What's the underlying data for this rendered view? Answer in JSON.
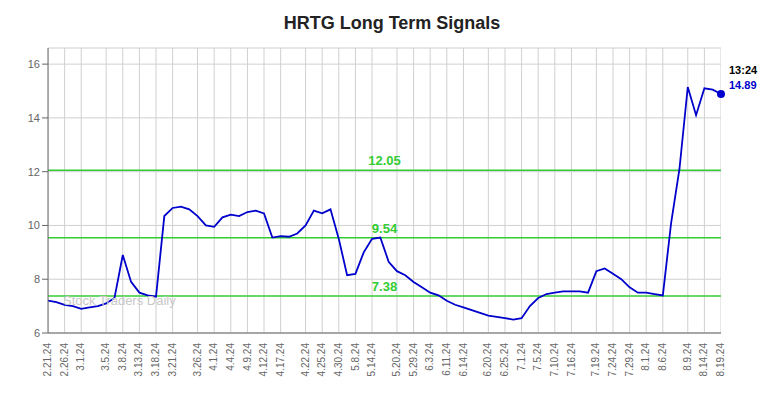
{
  "chart_data": {
    "type": "line",
    "title": "HRTG Long Term Signals",
    "categories": [
      "2.21.24",
      null,
      "2.26.24",
      null,
      "3.1.24",
      null,
      null,
      "3.5.24",
      null,
      "3.8.24",
      null,
      "3.13.24",
      null,
      "3.18.24",
      null,
      "3.21.24",
      null,
      null,
      "3.26.24",
      null,
      "4.1.24",
      null,
      "4.4.24",
      null,
      "4.9.24",
      null,
      "4.12.24",
      null,
      "4.17.24",
      null,
      null,
      "4.22.24",
      null,
      "4.25.24",
      null,
      "4.30.24",
      null,
      "5.8.24",
      null,
      "5.14.24",
      null,
      null,
      "5.20.24",
      null,
      "5.29.24",
      null,
      "6.3.24",
      null,
      "6.11.24",
      null,
      "6.14.24",
      null,
      null,
      "6.20.24",
      null,
      "6.25.24",
      null,
      "7.1.24",
      null,
      "7.5.24",
      null,
      "7.10.24",
      null,
      "7.16.24",
      null,
      null,
      "7.19.24",
      null,
      "7.24.24",
      null,
      "7.29.24",
      null,
      "8.1.24",
      null,
      "8.6.24",
      null,
      null,
      "8.9.24",
      null,
      "8.14.24",
      null,
      "8.19.24"
    ],
    "values": [
      7.2,
      7.15,
      7.05,
      7.0,
      6.9,
      6.95,
      7.0,
      7.1,
      7.3,
      8.9,
      7.9,
      7.5,
      7.4,
      7.35,
      10.35,
      10.65,
      10.7,
      10.6,
      10.35,
      10.0,
      9.95,
      10.3,
      10.4,
      10.35,
      10.5,
      10.55,
      10.45,
      9.55,
      9.6,
      9.58,
      9.7,
      10.0,
      10.55,
      10.45,
      10.6,
      9.5,
      8.15,
      8.2,
      9.0,
      9.5,
      9.55,
      8.65,
      8.3,
      8.15,
      7.9,
      7.7,
      7.5,
      7.4,
      7.2,
      7.05,
      6.95,
      6.85,
      6.75,
      6.65,
      6.6,
      6.55,
      6.5,
      6.55,
      7.0,
      7.3,
      7.45,
      7.5,
      7.55,
      7.55,
      7.55,
      7.5,
      8.3,
      8.4,
      8.2,
      8.0,
      7.7,
      7.5,
      7.5,
      7.45,
      7.4,
      10.1,
      12.1,
      15.15,
      14.1,
      15.1,
      15.05,
      14.89
    ],
    "color": "#0000cc",
    "ylim": [
      6.0,
      16.6
    ],
    "yticks": [
      6,
      8,
      10,
      12,
      14,
      16
    ],
    "grid": true,
    "horizontal_lines": [
      {
        "y": 12.05,
        "label": "12.05",
        "color": "#33cc33"
      },
      {
        "y": 9.54,
        "label": "9.54",
        "color": "#33cc33"
      },
      {
        "y": 7.38,
        "label": "7.38",
        "color": "#33cc33"
      }
    ],
    "annotations": [
      {
        "text": "13:24",
        "color": "#000000"
      },
      {
        "text": "14.89",
        "color": "#0000cc"
      }
    ],
    "watermark": {
      "text": "Stock Traders Daily",
      "color": "#c8c8c8"
    }
  }
}
